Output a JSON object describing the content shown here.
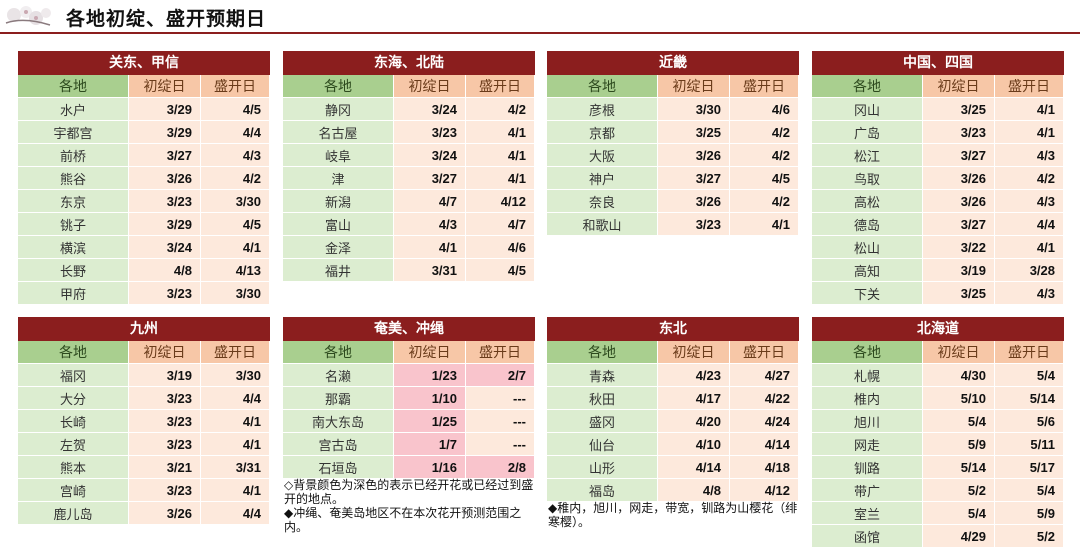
{
  "page": {
    "title": "各地初绽、盛开预期日"
  },
  "columns": {
    "place": "各地",
    "first": "初绽日",
    "full": "盛开日"
  },
  "panels": [
    {
      "name": "关东、甲信",
      "rows": [
        {
          "place": "水户",
          "first": "3/29",
          "full": "4/5"
        },
        {
          "place": "宇都宫",
          "first": "3/29",
          "full": "4/4"
        },
        {
          "place": "前桥",
          "first": "3/27",
          "full": "4/3"
        },
        {
          "place": "熊谷",
          "first": "3/26",
          "full": "4/2"
        },
        {
          "place": "东京",
          "first": "3/23",
          "full": "3/30"
        },
        {
          "place": "铫子",
          "first": "3/29",
          "full": "4/5"
        },
        {
          "place": "横滨",
          "first": "3/24",
          "full": "4/1"
        },
        {
          "place": "长野",
          "first": "4/8",
          "full": "4/13"
        },
        {
          "place": "甲府",
          "first": "3/23",
          "full": "3/30"
        }
      ]
    },
    {
      "name": "东海、北陆",
      "rows": [
        {
          "place": "静冈",
          "first": "3/24",
          "full": "4/2"
        },
        {
          "place": "名古屋",
          "first": "3/23",
          "full": "4/1"
        },
        {
          "place": "岐阜",
          "first": "3/24",
          "full": "4/1"
        },
        {
          "place": "津",
          "first": "3/27",
          "full": "4/1"
        },
        {
          "place": "新潟",
          "first": "4/7",
          "full": "4/12"
        },
        {
          "place": "富山",
          "first": "4/3",
          "full": "4/7"
        },
        {
          "place": "金泽",
          "first": "4/1",
          "full": "4/6"
        },
        {
          "place": "福井",
          "first": "3/31",
          "full": "4/5"
        }
      ]
    },
    {
      "name": "近畿",
      "rows": [
        {
          "place": "彦根",
          "first": "3/30",
          "full": "4/6"
        },
        {
          "place": "京都",
          "first": "3/25",
          "full": "4/2"
        },
        {
          "place": "大阪",
          "first": "3/26",
          "full": "4/2"
        },
        {
          "place": "神户",
          "first": "3/27",
          "full": "4/5"
        },
        {
          "place": "奈良",
          "first": "3/26",
          "full": "4/2"
        },
        {
          "place": "和歌山",
          "first": "3/23",
          "full": "4/1"
        }
      ]
    },
    {
      "name": "中国、四国",
      "rows": [
        {
          "place": "冈山",
          "first": "3/25",
          "full": "4/1"
        },
        {
          "place": "广岛",
          "first": "3/23",
          "full": "4/1"
        },
        {
          "place": "松江",
          "first": "3/27",
          "full": "4/3"
        },
        {
          "place": "鸟取",
          "first": "3/26",
          "full": "4/2"
        },
        {
          "place": "高松",
          "first": "3/26",
          "full": "4/3"
        },
        {
          "place": "德岛",
          "first": "3/27",
          "full": "4/4"
        },
        {
          "place": "松山",
          "first": "3/22",
          "full": "4/1"
        },
        {
          "place": "高知",
          "first": "3/19",
          "full": "3/28"
        },
        {
          "place": "下关",
          "first": "3/25",
          "full": "4/3"
        }
      ]
    },
    {
      "name": "九州",
      "rows": [
        {
          "place": "福冈",
          "first": "3/19",
          "full": "3/30"
        },
        {
          "place": "大分",
          "first": "3/23",
          "full": "4/4"
        },
        {
          "place": "长崎",
          "first": "3/23",
          "full": "4/1"
        },
        {
          "place": "左贺",
          "first": "3/23",
          "full": "4/1"
        },
        {
          "place": "熊本",
          "first": "3/21",
          "full": "3/31"
        },
        {
          "place": "宫崎",
          "first": "3/23",
          "full": "4/1"
        },
        {
          "place": "鹿儿岛",
          "first": "3/26",
          "full": "4/4"
        }
      ]
    },
    {
      "name": "奄美、冲绳",
      "rows": [
        {
          "place": "名濑",
          "first": "1/23",
          "full": "2/7",
          "first_hl": true,
          "full_hl": true
        },
        {
          "place": "那霸",
          "first": "1/10",
          "full": "---",
          "first_hl": true
        },
        {
          "place": "南大东岛",
          "first": "1/25",
          "full": "---",
          "first_hl": true
        },
        {
          "place": "宫古岛",
          "first": "1/7",
          "full": "---",
          "first_hl": true
        },
        {
          "place": "石垣岛",
          "first": "1/16",
          "full": "2/8",
          "first_hl": true,
          "full_hl": true
        }
      ],
      "notes": [
        "◇背景颜色为深色的表示已经开花或已经过到盛开的地点。",
        "◆冲绳、奄美岛地区不在本次花开预测范围之内。"
      ]
    },
    {
      "name": "东北",
      "rows": [
        {
          "place": "青森",
          "first": "4/23",
          "full": "4/27"
        },
        {
          "place": "秋田",
          "first": "4/17",
          "full": "4/22"
        },
        {
          "place": "盛冈",
          "first": "4/20",
          "full": "4/24"
        },
        {
          "place": "仙台",
          "first": "4/10",
          "full": "4/14"
        },
        {
          "place": "山形",
          "first": "4/14",
          "full": "4/18"
        },
        {
          "place": "福岛",
          "first": "4/8",
          "full": "4/12"
        }
      ],
      "notes": [
        "◆稚内，旭川，网走，带宽，钏路为山樱花（绯寒樱）。"
      ]
    },
    {
      "name": "北海道",
      "rows": [
        {
          "place": "札幌",
          "first": "4/30",
          "full": "5/4"
        },
        {
          "place": "椎内",
          "first": "5/10",
          "full": "5/14"
        },
        {
          "place": "旭川",
          "first": "5/4",
          "full": "5/6"
        },
        {
          "place": "网走",
          "first": "5/9",
          "full": "5/11"
        },
        {
          "place": "钏路",
          "first": "5/14",
          "full": "5/17"
        },
        {
          "place": "带广",
          "first": "5/2",
          "full": "5/4"
        },
        {
          "place": "室兰",
          "first": "5/4",
          "full": "5/9"
        },
        {
          "place": "函馆",
          "first": "4/29",
          "full": "5/2"
        }
      ]
    }
  ]
}
